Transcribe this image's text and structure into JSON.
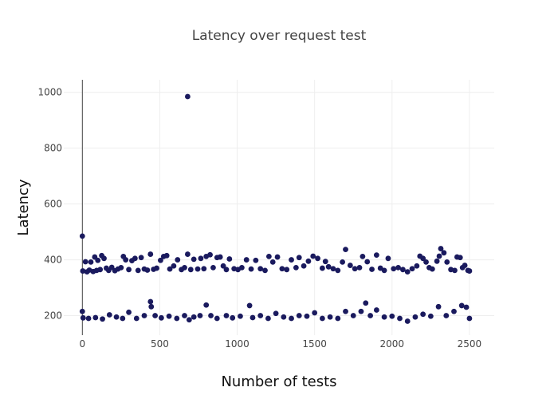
{
  "chart_data": {
    "type": "scatter",
    "title": "Latency over request test",
    "xlabel": "Number of tests",
    "ylabel": "Latency",
    "xlim": [
      -120,
      2660
    ],
    "ylim": [
      130,
      1045
    ],
    "xticks": [
      0,
      500,
      1000,
      1500,
      2000,
      2500
    ],
    "yticks": [
      200,
      400,
      600,
      800,
      1000
    ],
    "grid": true,
    "legend": "none",
    "marker_color": "#1a1a5e",
    "series": [
      {
        "points": [
          [
            0,
            485
          ],
          [
            680,
            985
          ],
          [
            0,
            215
          ],
          [
            3,
            360
          ],
          [
            20,
            393
          ],
          [
            30,
            357
          ],
          [
            45,
            363
          ],
          [
            55,
            392
          ],
          [
            70,
            358
          ],
          [
            80,
            410
          ],
          [
            92,
            362
          ],
          [
            100,
            398
          ],
          [
            115,
            365
          ],
          [
            125,
            415
          ],
          [
            140,
            405
          ],
          [
            155,
            370
          ],
          [
            170,
            362
          ],
          [
            190,
            373
          ],
          [
            210,
            361
          ],
          [
            230,
            367
          ],
          [
            250,
            372
          ],
          [
            265,
            412
          ],
          [
            280,
            400
          ],
          [
            300,
            365
          ],
          [
            320,
            397
          ],
          [
            340,
            405
          ],
          [
            360,
            362
          ],
          [
            380,
            408
          ],
          [
            400,
            367
          ],
          [
            420,
            363
          ],
          [
            440,
            420
          ],
          [
            460,
            366
          ],
          [
            480,
            370
          ],
          [
            505,
            398
          ],
          [
            525,
            412
          ],
          [
            545,
            415
          ],
          [
            565,
            367
          ],
          [
            590,
            378
          ],
          [
            615,
            400
          ],
          [
            640,
            365
          ],
          [
            660,
            372
          ],
          [
            680,
            420
          ],
          [
            700,
            365
          ],
          [
            720,
            402
          ],
          [
            745,
            367
          ],
          [
            765,
            405
          ],
          [
            785,
            368
          ],
          [
            800,
            412
          ],
          [
            825,
            418
          ],
          [
            845,
            372
          ],
          [
            870,
            408
          ],
          [
            890,
            410
          ],
          [
            910,
            378
          ],
          [
            930,
            365
          ],
          [
            950,
            403
          ],
          [
            980,
            368
          ],
          [
            1005,
            365
          ],
          [
            1030,
            372
          ],
          [
            1060,
            400
          ],
          [
            1090,
            367
          ],
          [
            1120,
            398
          ],
          [
            1150,
            368
          ],
          [
            1180,
            362
          ],
          [
            1205,
            412
          ],
          [
            1230,
            392
          ],
          [
            1260,
            410
          ],
          [
            1290,
            368
          ],
          [
            1320,
            365
          ],
          [
            1350,
            400
          ],
          [
            1380,
            372
          ],
          [
            1400,
            408
          ],
          [
            1430,
            378
          ],
          [
            1460,
            395
          ],
          [
            1490,
            413
          ],
          [
            1520,
            405
          ],
          [
            1550,
            370
          ],
          [
            1570,
            394
          ],
          [
            1590,
            375
          ],
          [
            1620,
            368
          ],
          [
            1650,
            362
          ],
          [
            1680,
            392
          ],
          [
            1700,
            437
          ],
          [
            1730,
            380
          ],
          [
            1760,
            368
          ],
          [
            1790,
            372
          ],
          [
            1810,
            412
          ],
          [
            1840,
            393
          ],
          [
            1870,
            366
          ],
          [
            1900,
            417
          ],
          [
            1925,
            370
          ],
          [
            1950,
            362
          ],
          [
            1975,
            405
          ],
          [
            2010,
            368
          ],
          [
            2040,
            372
          ],
          [
            2070,
            365
          ],
          [
            2100,
            357
          ],
          [
            2130,
            368
          ],
          [
            2160,
            378
          ],
          [
            2180,
            413
          ],
          [
            2200,
            405
          ],
          [
            2220,
            392
          ],
          [
            2240,
            372
          ],
          [
            2260,
            367
          ],
          [
            2290,
            395
          ],
          [
            2305,
            413
          ],
          [
            2315,
            440
          ],
          [
            2335,
            425
          ],
          [
            2355,
            392
          ],
          [
            2380,
            365
          ],
          [
            2405,
            362
          ],
          [
            2420,
            410
          ],
          [
            2440,
            408
          ],
          [
            2455,
            372
          ],
          [
            2470,
            380
          ],
          [
            2490,
            362
          ],
          [
            2500,
            360
          ],
          [
            5,
            192
          ],
          [
            40,
            190
          ],
          [
            85,
            193
          ],
          [
            130,
            188
          ],
          [
            175,
            203
          ],
          [
            220,
            195
          ],
          [
            260,
            190
          ],
          [
            300,
            212
          ],
          [
            350,
            190
          ],
          [
            400,
            200
          ],
          [
            440,
            250
          ],
          [
            445,
            232
          ],
          [
            470,
            200
          ],
          [
            510,
            192
          ],
          [
            560,
            198
          ],
          [
            610,
            190
          ],
          [
            660,
            200
          ],
          [
            690,
            185
          ],
          [
            720,
            195
          ],
          [
            760,
            200
          ],
          [
            800,
            238
          ],
          [
            830,
            200
          ],
          [
            870,
            190
          ],
          [
            930,
            200
          ],
          [
            970,
            192
          ],
          [
            1020,
            198
          ],
          [
            1080,
            236
          ],
          [
            1100,
            193
          ],
          [
            1150,
            200
          ],
          [
            1200,
            190
          ],
          [
            1250,
            208
          ],
          [
            1300,
            195
          ],
          [
            1350,
            190
          ],
          [
            1400,
            200
          ],
          [
            1450,
            198
          ],
          [
            1500,
            210
          ],
          [
            1550,
            190
          ],
          [
            1600,
            195
          ],
          [
            1650,
            190
          ],
          [
            1700,
            215
          ],
          [
            1750,
            200
          ],
          [
            1800,
            215
          ],
          [
            1830,
            245
          ],
          [
            1860,
            200
          ],
          [
            1900,
            220
          ],
          [
            1950,
            195
          ],
          [
            2000,
            198
          ],
          [
            2050,
            190
          ],
          [
            2100,
            180
          ],
          [
            2150,
            195
          ],
          [
            2200,
            205
          ],
          [
            2250,
            198
          ],
          [
            2300,
            232
          ],
          [
            2350,
            200
          ],
          [
            2400,
            215
          ],
          [
            2450,
            236
          ],
          [
            2480,
            230
          ],
          [
            2500,
            190
          ]
        ]
      }
    ]
  }
}
